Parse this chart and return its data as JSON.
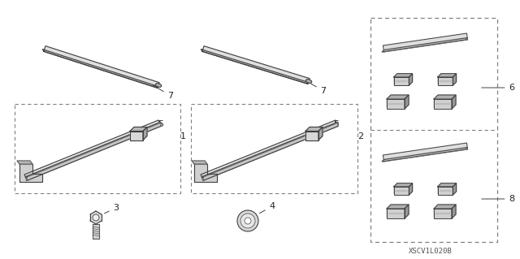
{
  "bg_color": "#ffffff",
  "diagram_code": "XSCV1L020B",
  "line_color": "#404040",
  "dash_color": "#808080",
  "text_color": "#222222",
  "font_size": 7.5
}
